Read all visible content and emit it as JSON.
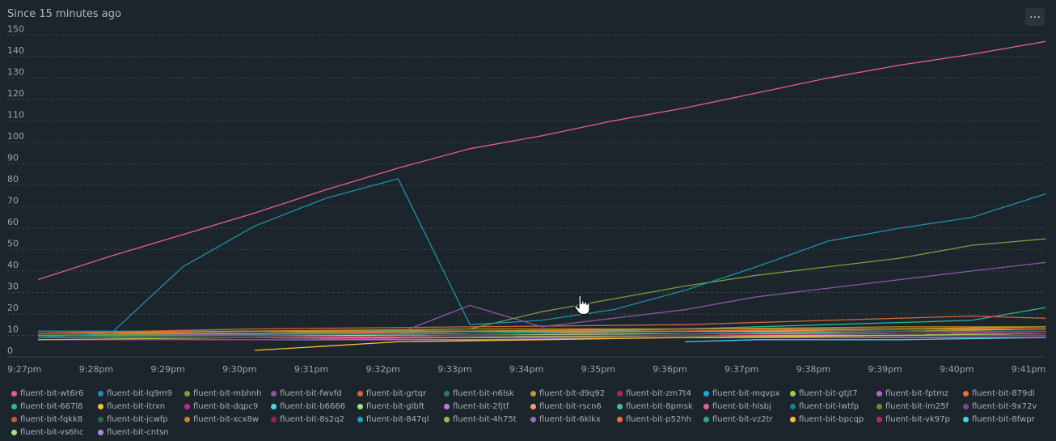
{
  "header": {
    "title": "Since 15 minutes ago",
    "menu_label": "…"
  },
  "colors": {
    "background": "#1d252c",
    "grid": "#39424b",
    "text": "#9aa3ad"
  },
  "cursor_icon": "hand-pointer-icon",
  "chart_data": {
    "type": "line",
    "x_ticks": [
      "9:27pm",
      "9:28pm",
      "9:29pm",
      "9:30pm",
      "9:31pm",
      "9:32pm",
      "9:33pm",
      "9:34pm",
      "9:35pm",
      "9:36pm",
      "9:37pm",
      "9:38pm",
      "9:39pm",
      "9:40pm",
      "9:41pm"
    ],
    "y_ticks": [
      "0",
      "10",
      "20",
      "30",
      "40",
      "50",
      "60",
      "70",
      "80",
      "90",
      "100",
      "110",
      "120",
      "130",
      "140",
      "150"
    ],
    "ylim": [
      0,
      155
    ],
    "xlim": [
      0,
      14.3
    ],
    "grid": true,
    "legend_position": "bottom",
    "series": [
      {
        "name": "fluent-bit-wt6r6",
        "color": "#e55a9e",
        "x": [
          0.25,
          1.27,
          2.27,
          3.27,
          4.27,
          5.27,
          6.27,
          7.27,
          8.27,
          9.27,
          10.27,
          11.27,
          12.27,
          13.27,
          14.3
        ],
        "values": [
          36,
          47,
          57,
          67,
          78,
          88,
          97,
          103,
          110,
          116,
          123,
          130,
          136,
          141,
          147
        ]
      },
      {
        "name": "fluent-bit-lq9m9",
        "color": "#1f8fa9",
        "x": [
          0.25,
          1.27,
          2.27,
          3.27,
          4.27,
          5.27,
          6.27,
          7.27,
          8.27,
          9.27,
          10.27,
          11.27,
          12.27,
          13.27,
          14.3
        ],
        "values": [
          9,
          11,
          42,
          61,
          74,
          83,
          15,
          17,
          22,
          31,
          42,
          54,
          60,
          65,
          76
        ]
      },
      {
        "name": "fluent-bit-mbhnh",
        "color": "#78a038",
        "x": [
          0.25,
          3.27,
          6.27,
          7.27,
          8.27,
          9.27,
          10.27,
          11.27,
          12.27,
          13.27,
          14.3
        ],
        "values": [
          10,
          11,
          13,
          21,
          27,
          33,
          38,
          42,
          46,
          52,
          55
        ]
      },
      {
        "name": "fluent-bit-fwvfd",
        "color": "#8a56a6",
        "x": [
          0.25,
          5.27,
          6.27,
          7.27,
          8.27,
          9.27,
          10.27,
          11.27,
          12.27,
          13.27,
          14.3
        ],
        "values": [
          10,
          11,
          24,
          14,
          18,
          22,
          28,
          32,
          36,
          40,
          44
        ]
      },
      {
        "name": "fluent-bit-grtqr",
        "color": "#d0663b",
        "x": [
          0.25,
          3.27,
          6.27,
          9.27,
          11.27,
          13.27,
          14.3
        ],
        "values": [
          11,
          13,
          14,
          15,
          17,
          19,
          18
        ]
      },
      {
        "name": "fluent-bit-n6lsk",
        "color": "#2e7d5a",
        "x": [
          0.25,
          3.27,
          6.27,
          9.27,
          12.27,
          14.3
        ],
        "values": [
          9,
          10,
          11,
          11,
          12,
          12
        ]
      },
      {
        "name": "fluent-bit-d9q92",
        "color": "#c9952d",
        "x": [
          0.25,
          3.27,
          6.27,
          9.27,
          12.27,
          14.3
        ],
        "values": [
          11,
          12,
          12,
          13,
          13,
          14
        ]
      },
      {
        "name": "fluent-bit-zm7t4",
        "color": "#a8265b",
        "x": [
          0.25,
          3.27,
          6.27,
          9.27,
          12.27,
          14.3
        ],
        "values": [
          9,
          9,
          10,
          10,
          11,
          11
        ]
      },
      {
        "name": "fluent-bit-mqvpx",
        "color": "#23a8c9",
        "x": [
          0.25,
          3.27,
          6.27,
          9.27,
          12.27,
          14.3
        ],
        "values": [
          10,
          10,
          11,
          11,
          12,
          12
        ]
      },
      {
        "name": "fluent-bit-gtjt7",
        "color": "#9ccd4f",
        "x": [
          0.25,
          3.27,
          6.27,
          9.27,
          12.27,
          14.3
        ],
        "values": [
          8,
          9,
          9,
          10,
          10,
          11
        ]
      },
      {
        "name": "fluent-bit-fptmz",
        "color": "#b466cf",
        "x": [
          0.25,
          3.27,
          6.27,
          9.27,
          12.27,
          14.3
        ],
        "values": [
          9,
          9,
          10,
          10,
          11,
          11
        ]
      },
      {
        "name": "fluent-bit-879dl",
        "color": "#e86f35",
        "x": [
          0.25,
          3.27,
          6.27,
          9.27,
          12.27,
          14.3
        ],
        "values": [
          11,
          11,
          12,
          12,
          13,
          13
        ]
      },
      {
        "name": "fluent-bit-667l8",
        "color": "#2ab795",
        "x": [
          0.25,
          3.27,
          6.27,
          9.27,
          11.27,
          13.27,
          14.3
        ],
        "values": [
          10,
          10,
          11,
          13,
          15,
          17,
          23
        ]
      },
      {
        "name": "fluent-bit-ltrxn",
        "color": "#f1c232",
        "x": [
          3.27,
          4.27,
          5.27,
          7.27,
          9.27,
          12.27,
          14.3
        ],
        "values": [
          3,
          5,
          7,
          8,
          9,
          10,
          11
        ]
      },
      {
        "name": "fluent-bit-dqpc9",
        "color": "#c7288f",
        "x": [
          0.25,
          3.27,
          6.27,
          9.27,
          12.27,
          14.3
        ],
        "values": [
          8,
          8,
          9,
          9,
          10,
          10
        ]
      },
      {
        "name": "fluent-bit-b6666",
        "color": "#49d3e8",
        "x": [
          0.25,
          3.27,
          6.27,
          9.27,
          12.27,
          14.3
        ],
        "values": [
          9,
          9,
          9,
          10,
          10,
          10
        ]
      },
      {
        "name": "fluent-bit-glbft",
        "color": "#a5e07c",
        "x": [
          0.25,
          3.27,
          6.27,
          9.27,
          12.27,
          14.3
        ],
        "values": [
          10,
          10,
          10,
          11,
          11,
          11
        ]
      },
      {
        "name": "fluent-bit-2fjtf",
        "color": "#b87fd9",
        "x": [
          0.25,
          3.27,
          6.27,
          9.27,
          12.27,
          14.3
        ],
        "values": [
          8,
          8,
          8,
          9,
          9,
          9
        ]
      },
      {
        "name": "fluent-bit-rscn6",
        "color": "#f0a070",
        "x": [
          0.25,
          3.27,
          6.27,
          9.27,
          12.27,
          14.3
        ],
        "values": [
          11,
          11,
          11,
          12,
          12,
          12
        ]
      },
      {
        "name": "fluent-bit-8pmsk",
        "color": "#3fbf9f",
        "x": [
          0.25,
          3.27,
          6.27,
          9.27,
          12.27,
          14.3
        ],
        "values": [
          9,
          9,
          10,
          10,
          10,
          11
        ]
      },
      {
        "name": "fluent-bit-hlsbj",
        "color": "#e05ca4",
        "x": [
          0.25,
          3.27,
          6.27,
          9.27,
          12.27,
          14.3
        ],
        "values": [
          10,
          10,
          10,
          10,
          11,
          11
        ]
      },
      {
        "name": "fluent-bit-lwtfp",
        "color": "#1a7f99",
        "x": [
          0.25,
          3.27,
          6.27,
          9.27,
          12.27,
          14.3
        ],
        "values": [
          12,
          12,
          12,
          13,
          13,
          13
        ]
      },
      {
        "name": "fluent-bit-lm25f",
        "color": "#5f8f2f",
        "x": [
          0.25,
          3.27,
          6.27,
          9.27,
          12.27,
          14.3
        ],
        "values": [
          9,
          9,
          9,
          9,
          10,
          10
        ]
      },
      {
        "name": "fluent-bit-9x72v",
        "color": "#74489e",
        "x": [
          0.25,
          3.27,
          6.27,
          9.27,
          12.27,
          14.3
        ],
        "values": [
          10,
          10,
          11,
          11,
          11,
          12
        ]
      },
      {
        "name": "fluent-bit-fqkk8",
        "color": "#c45a35",
        "x": [
          0.25,
          3.27,
          6.27,
          9.27,
          12.27,
          14.3
        ],
        "values": [
          11,
          12,
          12,
          12,
          13,
          13
        ]
      },
      {
        "name": "fluent-bit-jcwfp",
        "color": "#25714f",
        "x": [
          0.25,
          3.27,
          6.27,
          9.27,
          12.27,
          14.3
        ],
        "values": [
          10,
          10,
          10,
          11,
          11,
          11
        ]
      },
      {
        "name": "fluent-bit-xcx8w",
        "color": "#c08a22",
        "x": [
          0.25,
          3.27,
          6.27,
          9.27,
          12.27,
          14.3
        ],
        "values": [
          12,
          12,
          13,
          13,
          14,
          14
        ]
      },
      {
        "name": "fluent-bit-8s2q2",
        "color": "#9b1f50",
        "x": [
          0.25,
          3.27,
          6.27,
          9.27,
          12.27,
          14.3
        ],
        "values": [
          9,
          9,
          9,
          10,
          10,
          10
        ]
      },
      {
        "name": "fluent-bit-847ql",
        "color": "#1fa0c4",
        "x": [
          0.25,
          3.27,
          6.27,
          9.27,
          12.27,
          14.3
        ],
        "values": [
          11,
          11,
          11,
          11,
          12,
          12
        ]
      },
      {
        "name": "fluent-bit-4h75t",
        "color": "#8cc74a",
        "x": [
          0.25,
          3.27,
          6.27,
          9.27,
          12.27,
          14.3
        ],
        "values": [
          10,
          10,
          11,
          11,
          11,
          12
        ]
      },
      {
        "name": "fluent-bit-6klkx",
        "color": "#9a6cc2",
        "x": [
          0.25,
          3.27,
          6.27,
          9.27,
          12.27,
          14.3
        ],
        "values": [
          9,
          9,
          10,
          10,
          10,
          10
        ]
      },
      {
        "name": "fluent-bit-p52hh",
        "color": "#ec6b3f",
        "x": [
          0.25,
          3.27,
          6.27,
          9.27,
          12.27,
          14.3
        ],
        "values": [
          12,
          12,
          12,
          12,
          13,
          13
        ]
      },
      {
        "name": "fluent-bit-vz2tr",
        "color": "#2aa88a",
        "x": [
          0.25,
          3.27,
          6.27,
          9.27,
          12.27,
          14.3
        ],
        "values": [
          10,
          11,
          11,
          11,
          12,
          12
        ]
      },
      {
        "name": "fluent-bit-bpcqp",
        "color": "#f2c12c",
        "x": [
          0.25,
          3.27,
          6.27,
          9.27,
          12.27,
          14.3
        ],
        "values": [
          11,
          11,
          12,
          12,
          12,
          13
        ]
      },
      {
        "name": "fluent-bit-vk97p",
        "color": "#c41f86",
        "x": [
          0.25,
          3.27,
          6.27,
          9.27,
          12.27,
          14.3
        ],
        "values": [
          9,
          9,
          9,
          9,
          10,
          10
        ]
      },
      {
        "name": "fluent-bit-8fwpr",
        "color": "#45cfee",
        "x": [
          9.27,
          10.27,
          12.27,
          14.3
        ],
        "values": [
          7,
          8,
          8,
          9
        ]
      },
      {
        "name": "fluent-bit-vs6hc",
        "color": "#a6e08a",
        "x": [
          0.25,
          3.27,
          6.27,
          9.27,
          12.27,
          14.3
        ],
        "values": [
          10,
          10,
          10,
          10,
          11,
          11
        ]
      },
      {
        "name": "fluent-bit-cntsn",
        "color": "#b088e0",
        "x": [
          0.25,
          3.27,
          6.27,
          9.27,
          12.27,
          14.3
        ],
        "values": [
          8,
          8,
          9,
          9,
          9,
          9
        ]
      }
    ]
  }
}
